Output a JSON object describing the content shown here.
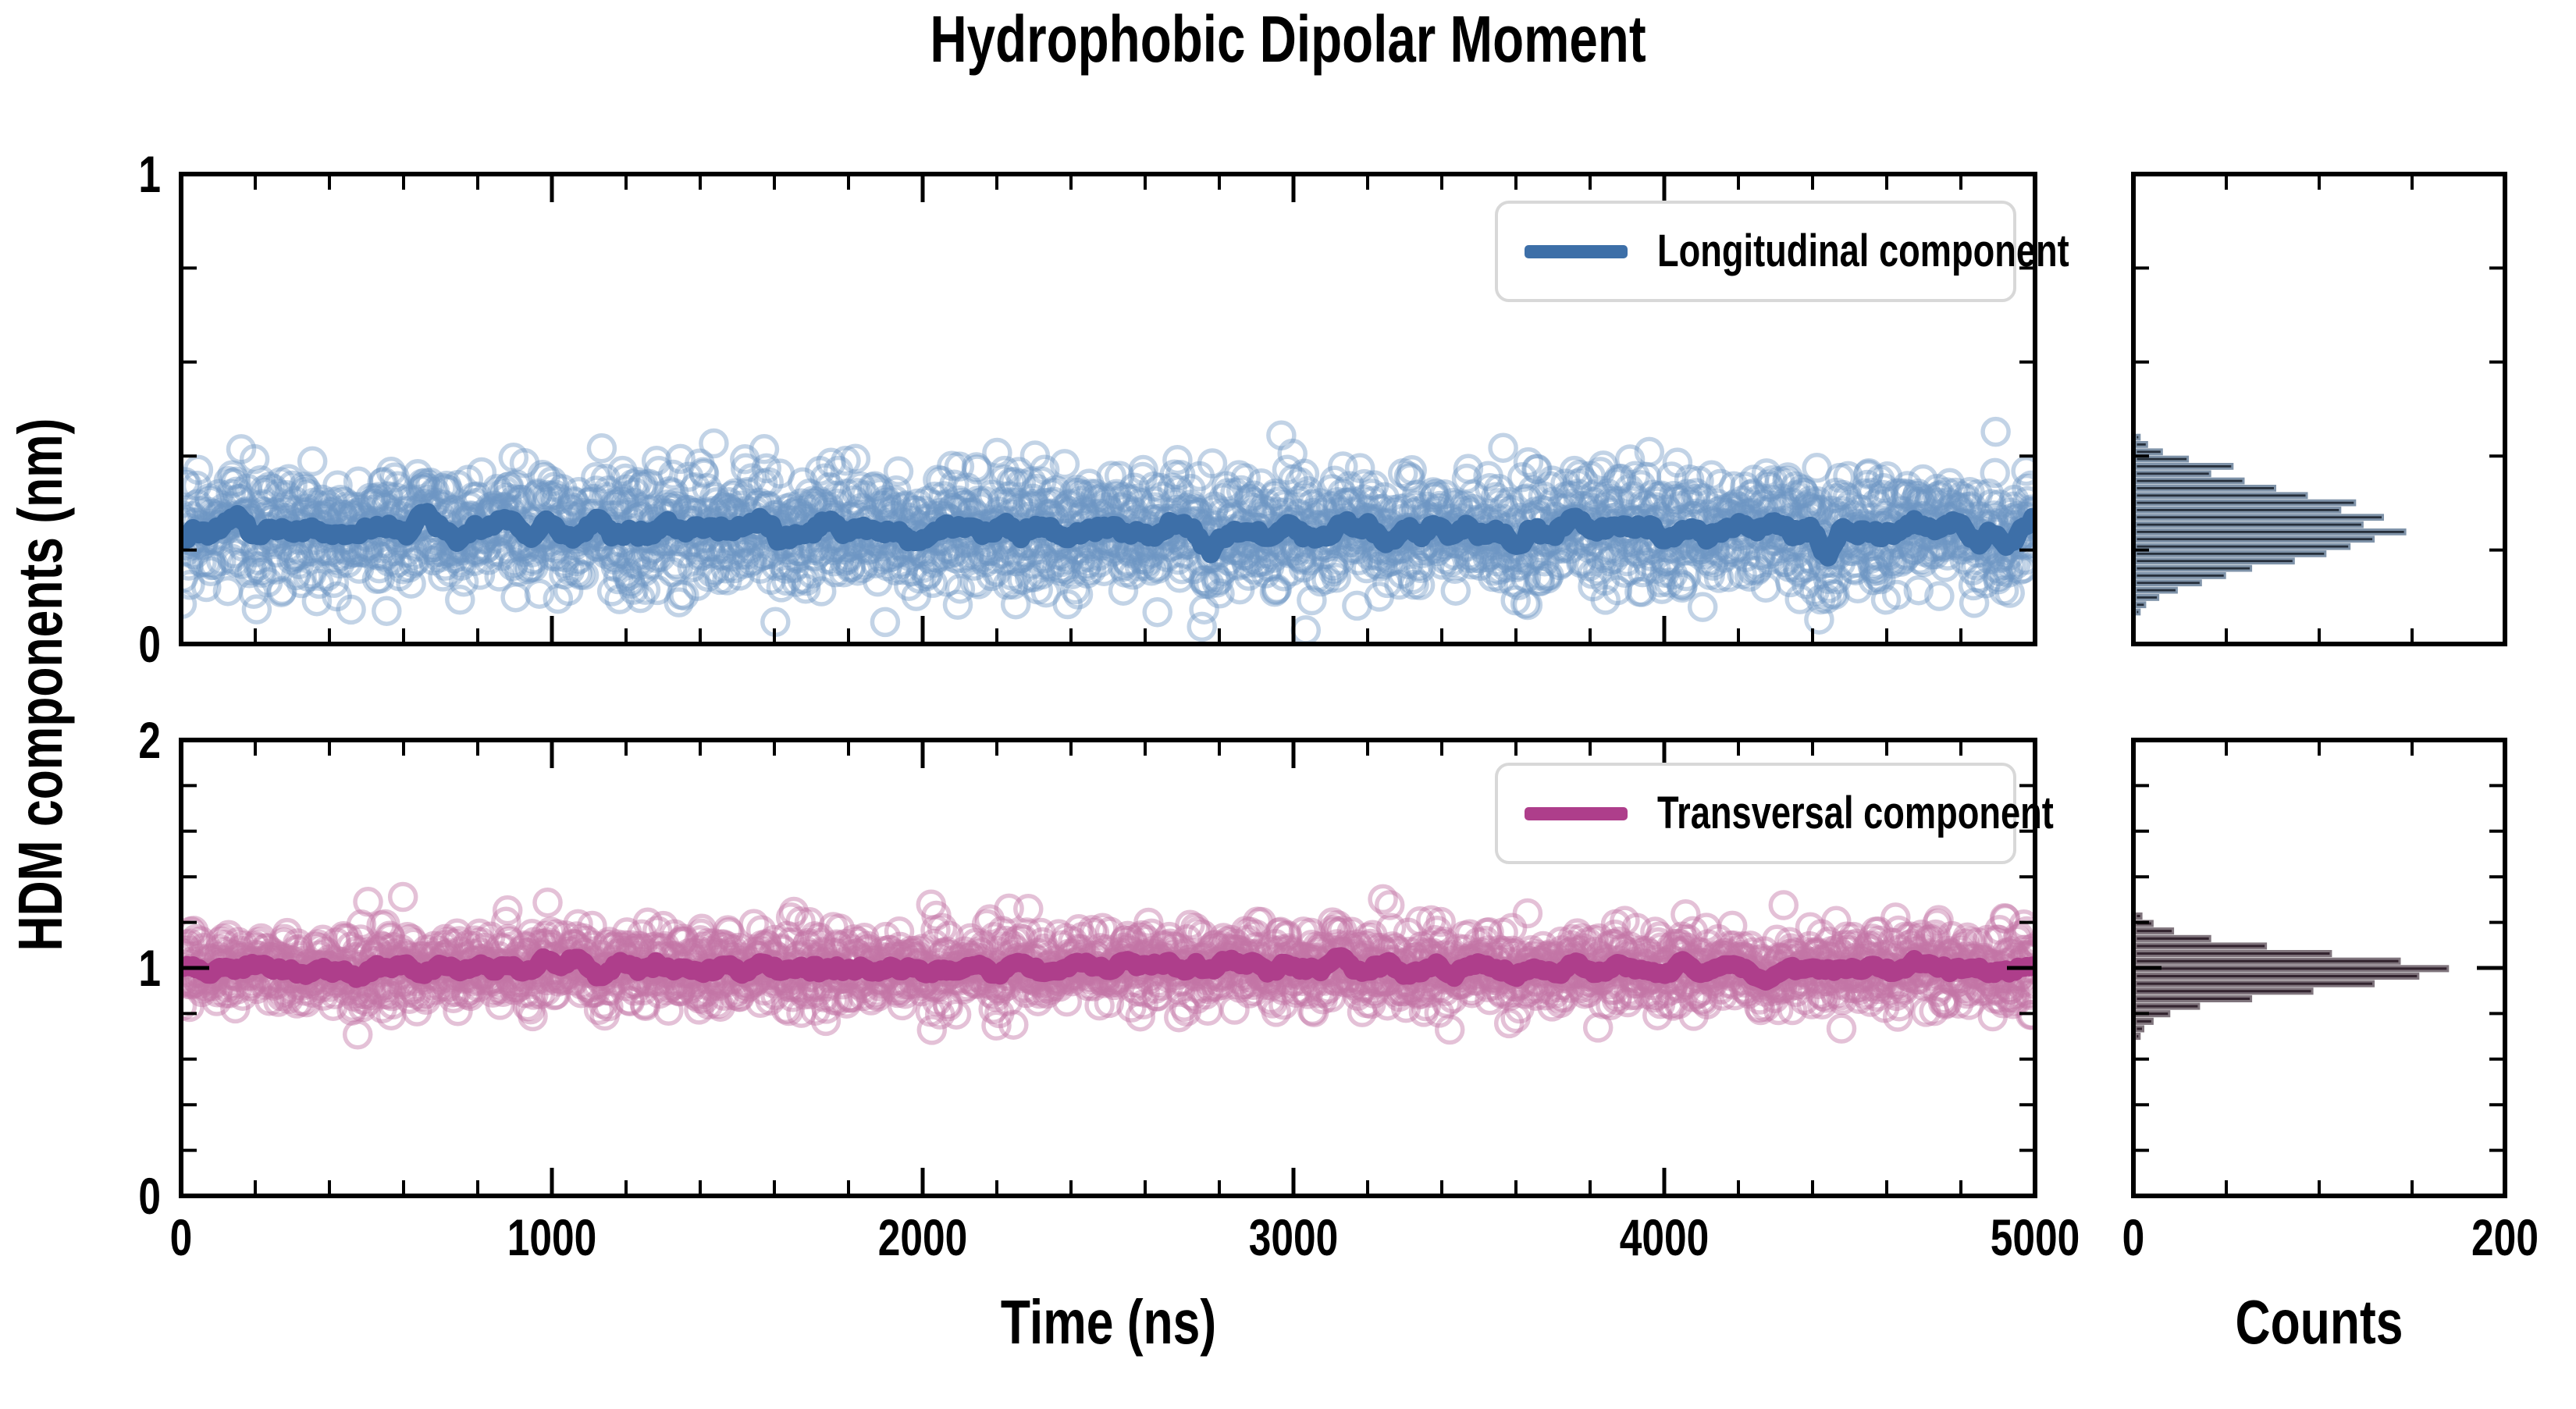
{
  "title": "Hydrophobic Dipolar Moment",
  "legend_border_color": "#d8d8d8",
  "chart_data": {
    "type": "scatter",
    "xlabel": "Time (ns)",
    "ylabel": "HDM components (nm)",
    "counts_label": "Counts",
    "time_axis": {
      "range": [
        0,
        5000
      ],
      "major_ticks": [
        0,
        1000,
        2000,
        3000,
        4000,
        5000
      ],
      "tick_labels": [
        "0",
        "1000",
        "2000",
        "3000",
        "4000",
        "5000"
      ],
      "minor_step": 200
    },
    "counts_axis": {
      "range": [
        0,
        200
      ],
      "major_ticks": [
        0,
        200
      ],
      "tick_labels": [
        "0",
        "200"
      ],
      "minor_ticks": [
        50,
        100,
        150
      ]
    },
    "panels": [
      {
        "name": "longitudinal",
        "legend": "Longitudinal component",
        "y_axis": {
          "range": [
            0,
            1
          ],
          "major_ticks": [
            0,
            1
          ],
          "tick_labels": [
            "0",
            "1"
          ],
          "minor_step": 0.2
        },
        "scatter": {
          "n_points": 2500,
          "mean": 0.24,
          "std": 0.062,
          "seed": 7
        },
        "trend_window": 25,
        "marker_color": "#6e96c3",
        "marker_opacity": 0.42,
        "line_color": "#3d6fa8",
        "histogram": {
          "bin_start": 0.068,
          "bin_width": 0.0155,
          "counts": [
            2,
            5,
            12,
            22,
            35,
            48,
            62,
            85,
            102,
            115,
            128,
            145,
            122,
            133,
            110,
            118,
            92,
            75,
            58,
            40,
            52,
            28,
            14,
            6,
            2
          ],
          "peak_count": 145,
          "fill": "#262f3b",
          "edge": "#7f93a9"
        }
      },
      {
        "name": "transversal",
        "legend": "Transversal component",
        "y_axis": {
          "range": [
            0,
            2
          ],
          "major_ticks": [
            0,
            1,
            2
          ],
          "tick_labels": [
            "0",
            "1",
            "2"
          ],
          "minor_step": 0.2
        },
        "scatter": {
          "n_points": 2500,
          "mean": 1.0,
          "std": 0.085,
          "seed": 13
        },
        "trend_window": 25,
        "marker_color": "#c475a7",
        "marker_opacity": 0.45,
        "line_color": "#ae3e8b",
        "histogram": {
          "bin_start": 0.7,
          "bin_width": 0.033,
          "counts": [
            2,
            4,
            9,
            18,
            34,
            62,
            95,
            128,
            152,
            168,
            142,
            105,
            70,
            40,
            20,
            9,
            3
          ],
          "peak_count": 168,
          "fill": "#33242f",
          "edge": "#80757d"
        }
      }
    ]
  }
}
